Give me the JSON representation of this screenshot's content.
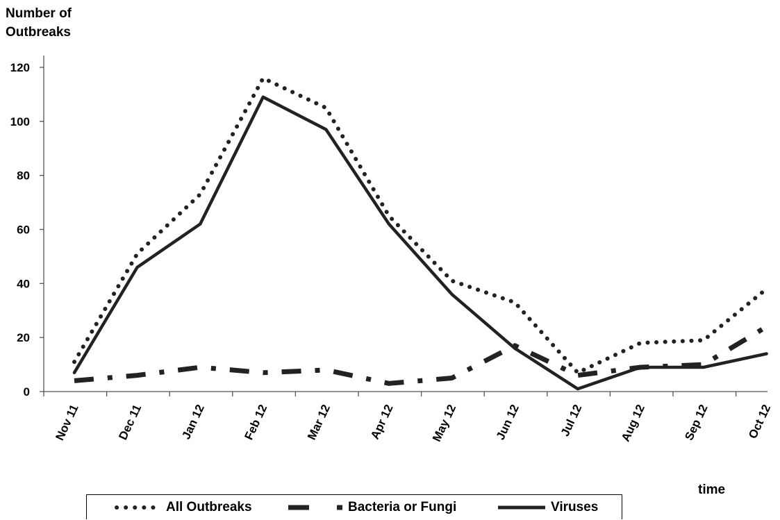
{
  "chart_data": {
    "type": "line",
    "ylabel": "Number of\nOutbreaks",
    "xlabel": "time",
    "categories": [
      "Nov 11",
      "Dec 11",
      "Jan 12",
      "Feb 12",
      "Mar 12",
      "Apr 12",
      "May 12",
      "Jun 12",
      "Jul 12",
      "Aug 12",
      "Sep 12",
      "Oct 12"
    ],
    "ylim": [
      0,
      120
    ],
    "yticks": [
      "0",
      "20",
      "40",
      "60",
      "80",
      "100",
      "120"
    ],
    "grid": false,
    "legend_position": "bottom",
    "series": [
      {
        "name": "All Outbreaks",
        "style": "dotted",
        "values": [
          11,
          51,
          73,
          116,
          105,
          65,
          41,
          33,
          7,
          18,
          19,
          38
        ]
      },
      {
        "name": "Bacteria or Fungi",
        "style": "dashed",
        "values": [
          4,
          6,
          9,
          7,
          8,
          3,
          5,
          17,
          6,
          9,
          10,
          24
        ]
      },
      {
        "name": "Viruses",
        "style": "solid",
        "values": [
          7,
          46,
          62,
          109,
          97,
          62,
          36,
          16,
          1,
          9,
          9,
          14
        ]
      }
    ],
    "colors": {
      "line": "#222222",
      "axis": "#555555"
    }
  }
}
